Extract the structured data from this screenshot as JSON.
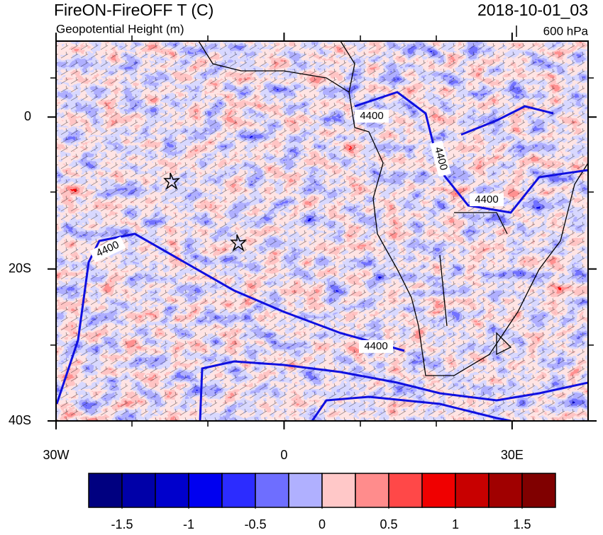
{
  "title": "FireON-FireOFF T (C)",
  "subtitle": "Geopotential Height (m)",
  "date": "2018-10-01_03",
  "level": "600 hPa",
  "map": {
    "xlim": [
      -30,
      40
    ],
    "ylim": [
      -40,
      10
    ],
    "xticks": [
      {
        "value": -30,
        "label": "30W"
      },
      0,
      {
        "value": 30,
        "label": "30E"
      }
    ],
    "yticks": [
      0,
      {
        "value": -20,
        "label": "20S"
      },
      {
        "value": -40,
        "label": "40S"
      }
    ]
  },
  "contour_labels": [
    "4400",
    "4400",
    "4400",
    "4400",
    "4400"
  ],
  "colorbar": {
    "colors": [
      "#000080",
      "#0000a8",
      "#0000cc",
      "#0000f0",
      "#2c2cff",
      "#6e6eff",
      "#b0b0ff",
      "#ffc8c8",
      "#ff8c8c",
      "#ff4848",
      "#f00000",
      "#c80000",
      "#a00000",
      "#800000"
    ],
    "range": [
      -1.75,
      1.75
    ],
    "ticks": [
      -1.5,
      -1,
      -0.5,
      0,
      0.5,
      1,
      1.5
    ]
  }
}
